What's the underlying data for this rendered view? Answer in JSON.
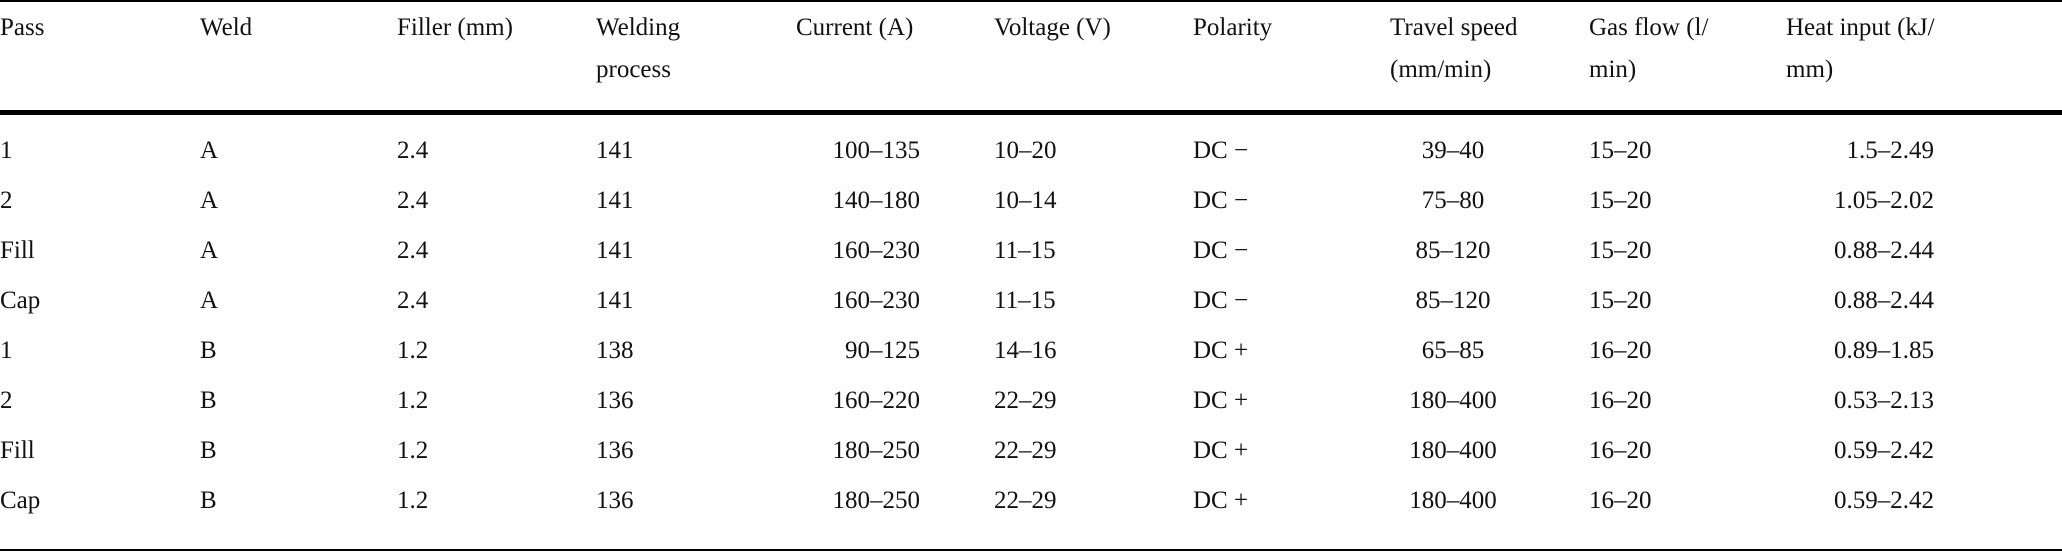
{
  "table": {
    "columns": [
      "Pass",
      "Weld",
      "Filler (mm)",
      "Welding process",
      "Current (A)",
      "Voltage (V)",
      "Polarity",
      "Travel speed (mm/min)",
      "Gas flow (l/min)",
      "Heat input (kJ/mm)"
    ],
    "header_lines": [
      [
        "Pass"
      ],
      [
        "Weld"
      ],
      [
        "Filler (mm)"
      ],
      [
        "Welding",
        "process"
      ],
      [
        "Current (A)"
      ],
      [
        "Voltage (V)"
      ],
      [
        "Polarity"
      ],
      [
        "Travel speed",
        "(mm/min)"
      ],
      [
        "Gas flow (l/",
        "min)"
      ],
      [
        "Heat input (kJ/",
        "mm)"
      ]
    ],
    "rows": [
      [
        "1",
        "A",
        "2.4",
        "141",
        "100–135",
        "10–20",
        "DC −",
        "39–40",
        "15–20",
        "1.5–2.49"
      ],
      [
        "2",
        "A",
        "2.4",
        "141",
        "140–180",
        "10–14",
        "DC −",
        "75–80",
        "15–20",
        "1.05–2.02"
      ],
      [
        "Fill",
        "A",
        "2.4",
        "141",
        "160–230",
        "11–15",
        "DC −",
        "85–120",
        "15–20",
        "0.88–2.44"
      ],
      [
        "Cap",
        "A",
        "2.4",
        "141",
        "160–230",
        "11–15",
        "DC −",
        "85–120",
        "15–20",
        "0.88–2.44"
      ],
      [
        "1",
        "B",
        "1.2",
        "138",
        "90–125",
        "14–16",
        "DC +",
        "65–85",
        "16–20",
        "0.89–1.85"
      ],
      [
        "2",
        "B",
        "1.2",
        "136",
        "160–220",
        "22–29",
        "DC +",
        "180–400",
        "16–20",
        "0.53–2.13"
      ],
      [
        "Fill",
        "B",
        "1.2",
        "136",
        "180–250",
        "22–29",
        "DC +",
        "180–400",
        "16–20",
        "0.59–2.42"
      ],
      [
        "Cap",
        "B",
        "1.2",
        "136",
        "180–250",
        "22–29",
        "DC +",
        "180–400",
        "16–20",
        "0.59–2.42"
      ]
    ]
  }
}
